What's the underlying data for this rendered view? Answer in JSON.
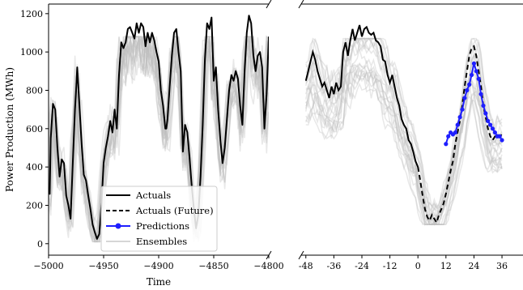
{
  "chart_data": [
    {
      "type": "line",
      "panel": "left",
      "xlabel": "Time",
      "ylabel": "Power Production (MWh)",
      "xlim": [
        -5000,
        -4800
      ],
      "ylim": [
        -60,
        1250
      ],
      "x_ticks": [
        -5000,
        -4950,
        -4900,
        -4850,
        -4800
      ],
      "x_tick_labels": [
        "−5000",
        "−4950",
        "−4900",
        "−4850",
        "−4800"
      ],
      "y_ticks": [
        0,
        200,
        400,
        600,
        800,
        1000,
        1200
      ],
      "y_tick_labels": [
        "0",
        "200",
        "400",
        "600",
        "800",
        "1000",
        "1200"
      ],
      "legend_position": "bottom-left",
      "legend": [
        {
          "label": "Actuals",
          "style": "solid",
          "color": "#000000"
        },
        {
          "label": "Actuals (Future)",
          "style": "dashed",
          "color": "#000000"
        },
        {
          "label": "Predictions",
          "style": "marker-line",
          "color": "#1f1fff"
        },
        {
          "label": "Ensembles",
          "style": "faint",
          "color": "#d9d9d9"
        }
      ],
      "series": [
        {
          "name": "Actuals",
          "color": "#000000",
          "x": [
            -5000,
            -4999,
            -4998,
            -4996,
            -4994,
            -4992,
            -4990,
            -4988,
            -4986,
            -4984,
            -4982,
            -4980,
            -4978,
            -4976,
            -4975,
            -4974,
            -4972,
            -4970,
            -4968,
            -4966,
            -4964,
            -4962,
            -4960,
            -4958,
            -4956,
            -4954,
            -4952,
            -4950,
            -4948,
            -4946,
            -4944,
            -4942,
            -4940,
            -4938,
            -4936,
            -4934,
            -4932,
            -4930,
            -4928,
            -4926,
            -4924,
            -4922,
            -4920,
            -4918,
            -4916,
            -4914,
            -4912,
            -4910,
            -4908,
            -4906,
            -4904,
            -4902,
            -4900,
            -4898,
            -4896,
            -4894,
            -4893,
            -4892,
            -4890,
            -4888,
            -4886,
            -4884,
            -4882,
            -4880,
            -4878,
            -4876,
            -4874,
            -4872,
            -4870,
            -4868,
            -4866,
            -4864,
            -4862,
            -4860,
            -4858,
            -4856,
            -4854,
            -4852,
            -4850,
            -4848,
            -4846,
            -4844,
            -4842,
            -4840,
            -4838,
            -4836,
            -4834,
            -4832,
            -4830,
            -4828,
            -4826,
            -4824,
            -4822,
            -4820,
            -4818,
            -4816,
            -4814,
            -4812,
            -4810,
            -4808,
            -4806,
            -4804,
            -4802,
            -4800
          ],
          "y": [
            280,
            260,
            550,
            730,
            700,
            500,
            350,
            440,
            420,
            250,
            200,
            130,
            420,
            700,
            800,
            920,
            720,
            520,
            360,
            330,
            250,
            180,
            100,
            60,
            25,
            50,
            200,
            420,
            500,
            560,
            640,
            580,
            700,
            600,
            880,
            1050,
            1020,
            1050,
            1120,
            1130,
            1100,
            1070,
            1150,
            1100,
            1150,
            1130,
            1030,
            1100,
            1050,
            1100,
            1060,
            1000,
            950,
            800,
            720,
            600,
            600,
            650,
            820,
            980,
            1100,
            1120,
            1000,
            900,
            480,
            620,
            580,
            450,
            300,
            180,
            80,
            150,
            350,
            620,
            960,
            1150,
            1120,
            1180,
            850,
            920,
            700,
            540,
            420,
            500,
            650,
            800,
            880,
            850,
            900,
            860,
            720,
            620,
            900,
            1100,
            1190,
            1150,
            980,
            900,
            980,
            1000,
            920,
            600,
            780,
            1080
          ]
        }
      ]
    },
    {
      "type": "line",
      "panel": "right",
      "xlim": [
        -50,
        45
      ],
      "ylim": [
        -60,
        1250
      ],
      "x_ticks": [
        -48,
        -36,
        -24,
        -12,
        0,
        12,
        24,
        36
      ],
      "x_tick_labels": [
        "-48",
        "-36",
        "-24",
        "-12",
        "0",
        "12",
        "24",
        "36"
      ],
      "series": [
        {
          "name": "Actuals",
          "color": "#000000",
          "style": "solid",
          "x": [
            -48,
            -47,
            -46,
            -45,
            -44,
            -43,
            -42,
            -41,
            -40,
            -39,
            -38,
            -37,
            -36,
            -35,
            -34,
            -33,
            -32,
            -31,
            -30,
            -29,
            -28,
            -27,
            -26,
            -25,
            -24,
            -23,
            -22,
            -21,
            -20,
            -19,
            -18,
            -17,
            -16,
            -15,
            -14,
            -13,
            -12,
            -11,
            -10,
            -9,
            -8,
            -7,
            -6,
            -5,
            -4,
            -3,
            -2,
            -1,
            0
          ],
          "y": [
            850,
            900,
            950,
            1000,
            960,
            900,
            860,
            820,
            840,
            800,
            760,
            820,
            780,
            840,
            800,
            820,
            1000,
            1050,
            980,
            1060,
            1120,
            1060,
            1100,
            1140,
            1080,
            1120,
            1130,
            1100,
            1090,
            1100,
            1060,
            1050,
            1030,
            960,
            950,
            880,
            840,
            880,
            820,
            760,
            720,
            650,
            620,
            600,
            540,
            520,
            480,
            430,
            400
          ]
        },
        {
          "name": "Actuals (Future)",
          "color": "#000000",
          "style": "dashed",
          "x": [
            0,
            1,
            2,
            3,
            4,
            5,
            6,
            7,
            8,
            9,
            10,
            11,
            12,
            13,
            14,
            15,
            16,
            17,
            18,
            19,
            20,
            21,
            22,
            23,
            24,
            25,
            26,
            27,
            28,
            29,
            30,
            31,
            32,
            33,
            34,
            35,
            36
          ],
          "y": [
            400,
            330,
            250,
            180,
            140,
            120,
            150,
            130,
            110,
            150,
            180,
            210,
            260,
            320,
            380,
            430,
            520,
            580,
            640,
            720,
            820,
            900,
            980,
            1020,
            1030,
            980,
            900,
            820,
            720,
            660,
            600,
            560,
            540,
            560,
            570,
            560,
            570
          ]
        },
        {
          "name": "Predictions",
          "color": "#1f1fff",
          "style": "marker-line",
          "x": [
            12,
            13,
            14,
            15,
            16,
            17,
            18,
            19,
            20,
            21,
            22,
            23,
            24,
            25,
            26,
            27,
            28,
            29,
            30,
            31,
            32,
            33,
            34,
            35,
            36
          ],
          "y": [
            520,
            560,
            580,
            570,
            580,
            620,
            660,
            700,
            760,
            800,
            830,
            880,
            940,
            900,
            860,
            780,
            720,
            680,
            640,
            620,
            600,
            580,
            560,
            560,
            540
          ]
        }
      ]
    }
  ]
}
